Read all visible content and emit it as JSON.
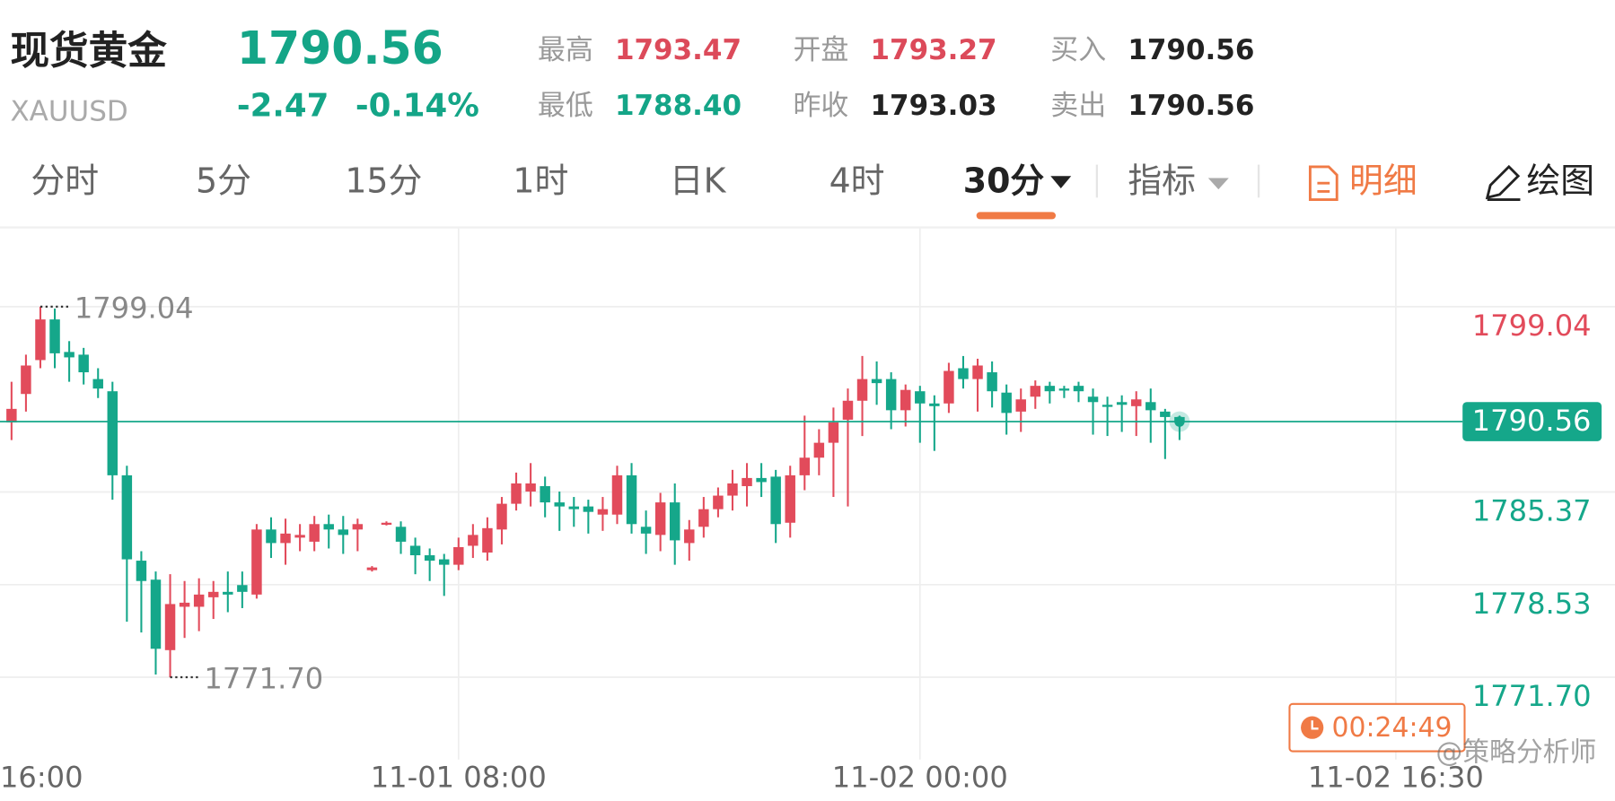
{
  "header": {
    "title": "现货黄金",
    "symbol": "XAUUSD",
    "price": "1790.56",
    "change": "-2.47",
    "change_pct": "-0.14%",
    "stats": [
      {
        "label": "最高",
        "value": "1793.47",
        "color": "#dc4a5a"
      },
      {
        "label": "开盘",
        "value": "1793.27",
        "color": "#dc4a5a"
      },
      {
        "label": "买入",
        "value": "1790.56",
        "color": "#222222"
      },
      {
        "label": "最低",
        "value": "1788.40",
        "color": "#14a587"
      },
      {
        "label": "昨收",
        "value": "1793.03",
        "color": "#222222"
      },
      {
        "label": "卖出",
        "value": "1790.56",
        "color": "#222222"
      }
    ]
  },
  "tabs": [
    "分时",
    "5分",
    "15分",
    "1时",
    "日K",
    "4时",
    "30分",
    "指标",
    "明细",
    "绘图"
  ],
  "active_tab": 6,
  "chart_data": {
    "type": "candlestick",
    "up_color": "#e24b5b",
    "down_color": "#15a78a",
    "grid": true,
    "x": [
      1,
      2,
      3,
      4,
      5,
      6,
      7,
      8,
      9,
      10,
      11,
      12,
      13,
      14,
      15,
      16,
      17,
      18,
      19,
      20,
      21,
      22,
      23,
      24,
      25,
      26,
      27,
      28,
      29,
      30,
      31,
      32,
      33,
      34,
      35,
      36,
      37,
      38,
      39,
      40,
      41,
      42,
      43,
      44,
      45,
      46,
      47,
      48,
      49,
      50,
      51,
      52,
      53,
      54,
      55,
      56,
      57,
      58,
      59,
      60,
      61,
      62,
      63,
      64,
      65,
      66,
      67,
      68,
      69,
      70,
      71,
      72,
      73,
      74,
      75,
      76,
      77,
      78,
      79,
      80,
      81,
      82
    ],
    "open": [
      1790.5,
      1792.6,
      1795.1,
      1798.1,
      1795.7,
      1795.5,
      1793.7,
      1792.8,
      1786.6,
      1780.3,
      1778.9,
      1773.7,
      1776.9,
      1776.9,
      1777.6,
      1778.0,
      1778.5,
      1777.8,
      1782.6,
      1781.6,
      1782.0,
      1781.7,
      1783.0,
      1782.6,
      1782.6,
      1779.6,
      1783.0,
      1782.8,
      1781.4,
      1780.7,
      1780.4,
      1780.0,
      1781.4,
      1780.9,
      1782.6,
      1784.5,
      1785.4,
      1785.8,
      1784.6,
      1784.3,
      1784.3,
      1783.7,
      1783.7,
      1786.6,
      1782.8,
      1782.2,
      1784.6,
      1781.6,
      1782.8,
      1784.1,
      1785.1,
      1785.8,
      1786.4,
      1786.5,
      1783.1,
      1786.6,
      1787.9,
      1789.0,
      1790.7,
      1792.1,
      1793.7,
      1793.7,
      1791.4,
      1792.8,
      1791.9,
      1791.9,
      1794.5,
      1793.7,
      1794.2,
      1792.7,
      1791.3,
      1792.4,
      1793.2,
      1793.0,
      1793.2,
      1792.4,
      1791.8,
      1792.0,
      1791.7,
      1792.0,
      1791.3,
      1790.9
    ],
    "high": [
      1793.5,
      1795.5,
      1799.04,
      1798.9,
      1796.5,
      1796.0,
      1794.5,
      1793.5,
      1787.3,
      1781.0,
      1779.5,
      1779.3,
      1778.8,
      1779.0,
      1778.8,
      1779.5,
      1779.5,
      1783.0,
      1783.5,
      1783.4,
      1783.0,
      1783.6,
      1783.7,
      1783.6,
      1783.4,
      1779.9,
      1783.2,
      1783.2,
      1782.0,
      1781.2,
      1780.8,
      1782.0,
      1783.0,
      1783.5,
      1785.0,
      1786.8,
      1787.5,
      1786.5,
      1785.4,
      1785.0,
      1784.8,
      1785.0,
      1787.3,
      1787.5,
      1784.0,
      1785.3,
      1786.0,
      1783.3,
      1785.0,
      1785.7,
      1787.0,
      1787.5,
      1787.5,
      1787.0,
      1787.3,
      1791.0,
      1790.0,
      1791.6,
      1793.0,
      1795.4,
      1795.0,
      1794.2,
      1793.3,
      1793.2,
      1792.5,
      1794.9,
      1795.4,
      1795.2,
      1795.0,
      1793.3,
      1793.0,
      1793.6,
      1793.5,
      1793.2,
      1793.5,
      1793.0,
      1792.4,
      1792.5,
      1792.8,
      1793.0,
      1791.5,
      1791.0
    ],
    "low": [
      1789.2,
      1791.3,
      1794.5,
      1794.5,
      1793.5,
      1793.3,
      1792.3,
      1784.8,
      1775.8,
      1775.0,
      1771.9,
      1771.7,
      1774.6,
      1775.1,
      1776.0,
      1776.5,
      1776.8,
      1777.5,
      1780.5,
      1780.0,
      1781.0,
      1781.0,
      1781.2,
      1780.8,
      1781.0,
      1779.5,
      1782.9,
      1780.8,
      1779.3,
      1778.8,
      1777.7,
      1779.6,
      1780.5,
      1780.3,
      1781.5,
      1784.0,
      1784.3,
      1783.5,
      1782.5,
      1782.8,
      1782.3,
      1782.5,
      1783.0,
      1782.3,
      1780.8,
      1781.0,
      1780.0,
      1780.3,
      1782.0,
      1783.5,
      1784.0,
      1784.3,
      1785.0,
      1781.6,
      1782.0,
      1785.5,
      1786.6,
      1785.0,
      1784.3,
      1789.5,
      1791.8,
      1790.0,
      1790.2,
      1789.0,
      1788.4,
      1791.2,
      1793.0,
      1791.3,
      1791.6,
      1789.6,
      1789.8,
      1791.5,
      1791.9,
      1792.3,
      1792.0,
      1789.6,
      1789.5,
      1789.8,
      1789.5,
      1789.0,
      1787.8,
      1789.2
    ],
    "close": [
      1791.5,
      1794.7,
      1798.1,
      1795.6,
      1795.3,
      1794.2,
      1793.0,
      1786.6,
      1780.4,
      1778.8,
      1773.8,
      1777.1,
      1777.2,
      1777.8,
      1778.0,
      1777.8,
      1778.0,
      1782.6,
      1781.6,
      1782.3,
      1782.2,
      1783.0,
      1782.6,
      1782.2,
      1783.0,
      1779.8,
      1783.1,
      1781.7,
      1780.7,
      1780.3,
      1780.0,
      1781.3,
      1782.2,
      1782.7,
      1784.5,
      1786.0,
      1786.0,
      1784.6,
      1784.3,
      1784.1,
      1783.9,
      1784.1,
      1786.6,
      1783.0,
      1782.3,
      1784.6,
      1781.8,
      1782.6,
      1784.1,
      1785.1,
      1786.0,
      1786.4,
      1786.1,
      1783.0,
      1786.6,
      1787.9,
      1789.0,
      1790.5,
      1792.1,
      1793.7,
      1793.4,
      1791.4,
      1792.9,
      1791.9,
      1791.7,
      1794.3,
      1793.7,
      1794.7,
      1792.8,
      1791.2,
      1792.2,
      1793.2,
      1792.8,
      1792.9,
      1792.8,
      1792.0,
      1791.7,
      1791.8,
      1792.2,
      1791.4,
      1790.9,
      1790.56
    ],
    "xlim": [
      0.2,
      112.2
    ],
    "ylim": [
      1765.63,
      1804.81
    ],
    "xticks": [
      {
        "value": 0,
        "label": "16:00"
      },
      {
        "value": 32,
        "label": "11-01 08:00"
      },
      {
        "value": 64,
        "label": "11-02 00:00"
      },
      {
        "value": 97,
        "label": "11-02 16:30"
      }
    ],
    "yticks": [
      1799.04,
      1785.37,
      1778.53,
      {
        "value": 1771.7,
        "label": "1771.70"
      }
    ],
    "current": 1790.56,
    "annotations": [
      {
        "x": 3,
        "value": 1799.04
      },
      {
        "x": 12,
        "value": {
          "value": 1771.7,
          "label": "1771.70"
        }
      }
    ],
    "timer": "00:24:49",
    "watermark": "@策略分析师"
  }
}
